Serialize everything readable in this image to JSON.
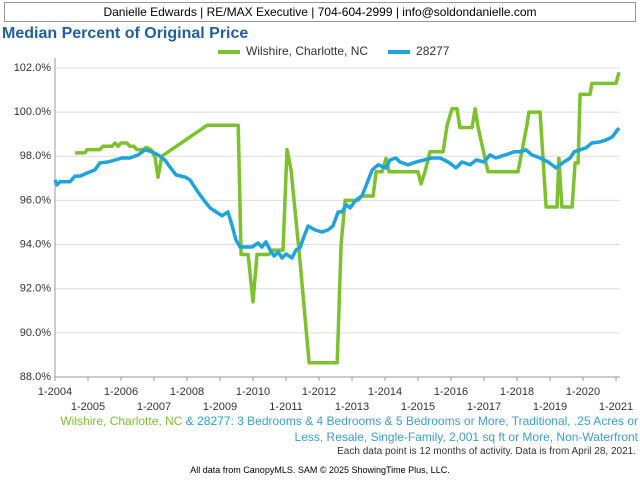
{
  "header": "Danielle Edwards | RE/MAX Executive | 704-604-2999 | info@soldondanielle.com",
  "chart_data": {
    "type": "line",
    "title": "Median Percent of Original Price",
    "xlim": [
      2004,
      2021.12
    ],
    "ylim": [
      88,
      102.45
    ],
    "xticks": [
      {
        "value": 2004,
        "label": "1-2004"
      },
      {
        "value": 2005,
        "label": "1-2005"
      },
      {
        "value": 2006,
        "label": "1-2006"
      },
      {
        "value": 2007,
        "label": "1-2007"
      },
      {
        "value": 2008,
        "label": "1-2008"
      },
      {
        "value": 2009,
        "label": "1-2009"
      },
      {
        "value": 2010,
        "label": "1-2010"
      },
      {
        "value": 2011,
        "label": "1-2011"
      },
      {
        "value": 2012,
        "label": "1-2012"
      },
      {
        "value": 2013,
        "label": "1-2013"
      },
      {
        "value": 2014,
        "label": "1-2014"
      },
      {
        "value": 2015,
        "label": "1-2015"
      },
      {
        "value": 2016,
        "label": "1-2016"
      },
      {
        "value": 2017,
        "label": "1-2017"
      },
      {
        "value": 2018,
        "label": "1-2018"
      },
      {
        "value": 2019,
        "label": "1-2019"
      },
      {
        "value": 2020,
        "label": "1-2020"
      },
      {
        "value": 2021,
        "label": "1-2021"
      }
    ],
    "yticks": [
      {
        "value": 88,
        "label": "88.0%"
      },
      {
        "value": 90,
        "label": "90.0%"
      },
      {
        "value": 92,
        "label": "92.0%"
      },
      {
        "value": 94,
        "label": "94.0%"
      },
      {
        "value": 96,
        "label": "96.0%"
      },
      {
        "value": 98,
        "label": "98.0%"
      },
      {
        "value": 100,
        "label": "100.0%"
      },
      {
        "value": 102,
        "label": "102.0%"
      }
    ],
    "grid": true,
    "series": [
      {
        "name": "Wilshire, Charlotte, NC",
        "color": "#7dc22e",
        "x": [
          2004.61,
          2004.91,
          2004.97,
          2005.36,
          2005.45,
          2005.73,
          2005.82,
          2005.91,
          2006.0,
          2006.18,
          2006.27,
          2006.39,
          2006.48,
          2006.67,
          2006.76,
          2006.91,
          2007.03,
          2007.12,
          2007.24,
          2008.61,
          2009.55,
          2009.64,
          2009.85,
          2010.0,
          2010.12,
          2010.48,
          2010.58,
          2010.91,
          2011.03,
          2011.15,
          2011.42,
          2011.7,
          2012.55,
          2012.67,
          2012.79,
          2013.18,
          2013.3,
          2013.64,
          2013.73,
          2013.91,
          2014.03,
          2014.12,
          2015.0,
          2015.09,
          2015.21,
          2015.36,
          2015.76,
          2015.88,
          2016.03,
          2016.18,
          2016.27,
          2016.64,
          2016.73,
          2016.82,
          2017.12,
          2018.03,
          2018.3,
          2018.36,
          2018.7,
          2018.88,
          2019.21,
          2019.27,
          2019.36,
          2019.67,
          2019.76,
          2019.85,
          2019.91,
          2020.21,
          2020.27,
          2021.0,
          2021.09
        ],
        "values": [
          98.15,
          98.15,
          98.3,
          98.3,
          98.45,
          98.45,
          98.6,
          98.45,
          98.6,
          98.6,
          98.45,
          98.45,
          98.3,
          98.3,
          98.4,
          98.3,
          97.95,
          97.05,
          98.0,
          99.4,
          99.4,
          93.55,
          93.55,
          91.4,
          93.55,
          93.55,
          93.75,
          93.75,
          98.3,
          97.4,
          93.3,
          88.65,
          88.65,
          94.0,
          96.0,
          96.0,
          96.2,
          96.2,
          97.3,
          97.3,
          97.9,
          97.3,
          97.3,
          96.75,
          97.3,
          98.2,
          98.2,
          99.4,
          100.15,
          100.15,
          99.3,
          99.3,
          100.15,
          99.3,
          97.3,
          97.3,
          99.4,
          100.0,
          100.0,
          95.7,
          95.7,
          97.9,
          95.7,
          95.7,
          97.7,
          97.7,
          100.8,
          100.8,
          101.3,
          101.3,
          101.8
        ]
      },
      {
        "name": "28277",
        "color": "#1fa3dd",
        "x": [
          2004.0,
          2004.06,
          2004.15,
          2004.45,
          2004.61,
          2004.76,
          2004.91,
          2005.21,
          2005.36,
          2005.61,
          2005.82,
          2006.03,
          2006.27,
          2006.52,
          2006.73,
          2006.94,
          2007.12,
          2007.33,
          2007.48,
          2007.67,
          2007.94,
          2008.09,
          2008.33,
          2008.55,
          2008.7,
          2008.88,
          2009.06,
          2009.24,
          2009.36,
          2009.48,
          2009.61,
          2009.97,
          2010.15,
          2010.27,
          2010.39,
          2010.52,
          2010.64,
          2010.76,
          2010.88,
          2011.0,
          2011.18,
          2011.3,
          2011.42,
          2011.55,
          2011.67,
          2011.88,
          2012.09,
          2012.27,
          2012.42,
          2012.58,
          2012.7,
          2012.82,
          2012.94,
          2013.12,
          2013.3,
          2013.42,
          2013.61,
          2013.79,
          2014.03,
          2014.15,
          2014.33,
          2014.45,
          2014.7,
          2014.94,
          2015.18,
          2015.42,
          2015.67,
          2015.91,
          2016.15,
          2016.33,
          2016.58,
          2016.76,
          2017.0,
          2017.18,
          2017.36,
          2017.55,
          2017.73,
          2017.91,
          2018.09,
          2018.27,
          2018.45,
          2018.7,
          2018.94,
          2019.18,
          2019.42,
          2019.61,
          2019.73,
          2019.91,
          2020.09,
          2020.27,
          2020.52,
          2020.7,
          2020.88,
          2021.0,
          2021.09
        ],
        "values": [
          96.93,
          96.7,
          96.84,
          96.84,
          97.1,
          97.1,
          97.2,
          97.38,
          97.7,
          97.74,
          97.83,
          97.92,
          97.92,
          98.06,
          98.29,
          98.2,
          98.06,
          97.83,
          97.52,
          97.15,
          97.06,
          96.93,
          96.38,
          95.93,
          95.66,
          95.48,
          95.3,
          95.48,
          94.89,
          94.21,
          93.89,
          93.89,
          94.07,
          93.89,
          94.12,
          93.75,
          93.48,
          93.66,
          93.39,
          93.57,
          93.39,
          93.75,
          93.84,
          94.39,
          94.84,
          94.66,
          94.57,
          94.66,
          94.84,
          95.48,
          95.48,
          95.8,
          95.66,
          96.02,
          96.2,
          96.65,
          97.38,
          97.61,
          97.47,
          97.83,
          97.92,
          97.74,
          97.61,
          97.74,
          97.83,
          97.92,
          97.92,
          97.74,
          97.47,
          97.74,
          97.61,
          97.83,
          97.74,
          98.06,
          97.92,
          98.02,
          98.1,
          98.2,
          98.2,
          98.29,
          98.06,
          97.92,
          97.74,
          97.47,
          97.74,
          97.92,
          98.2,
          98.29,
          98.38,
          98.6,
          98.65,
          98.74,
          98.87,
          99.1,
          99.28
        ]
      }
    ]
  },
  "caption": {
    "joiner": "&",
    "filters": ": 3 Bedrooms & 4 Bedrooms & 5 Bedrooms or More, Traditional, .25 Acres or Less, Resale, Single-Family, 2,001 sq ft or More, Non-Waterfront"
  },
  "note": "Each data point is 12 months of activity. Data is from April 28, 2021.",
  "footer": "All data from CanopyMLS. SAM © 2025 ShowingTime Plus, LLC."
}
